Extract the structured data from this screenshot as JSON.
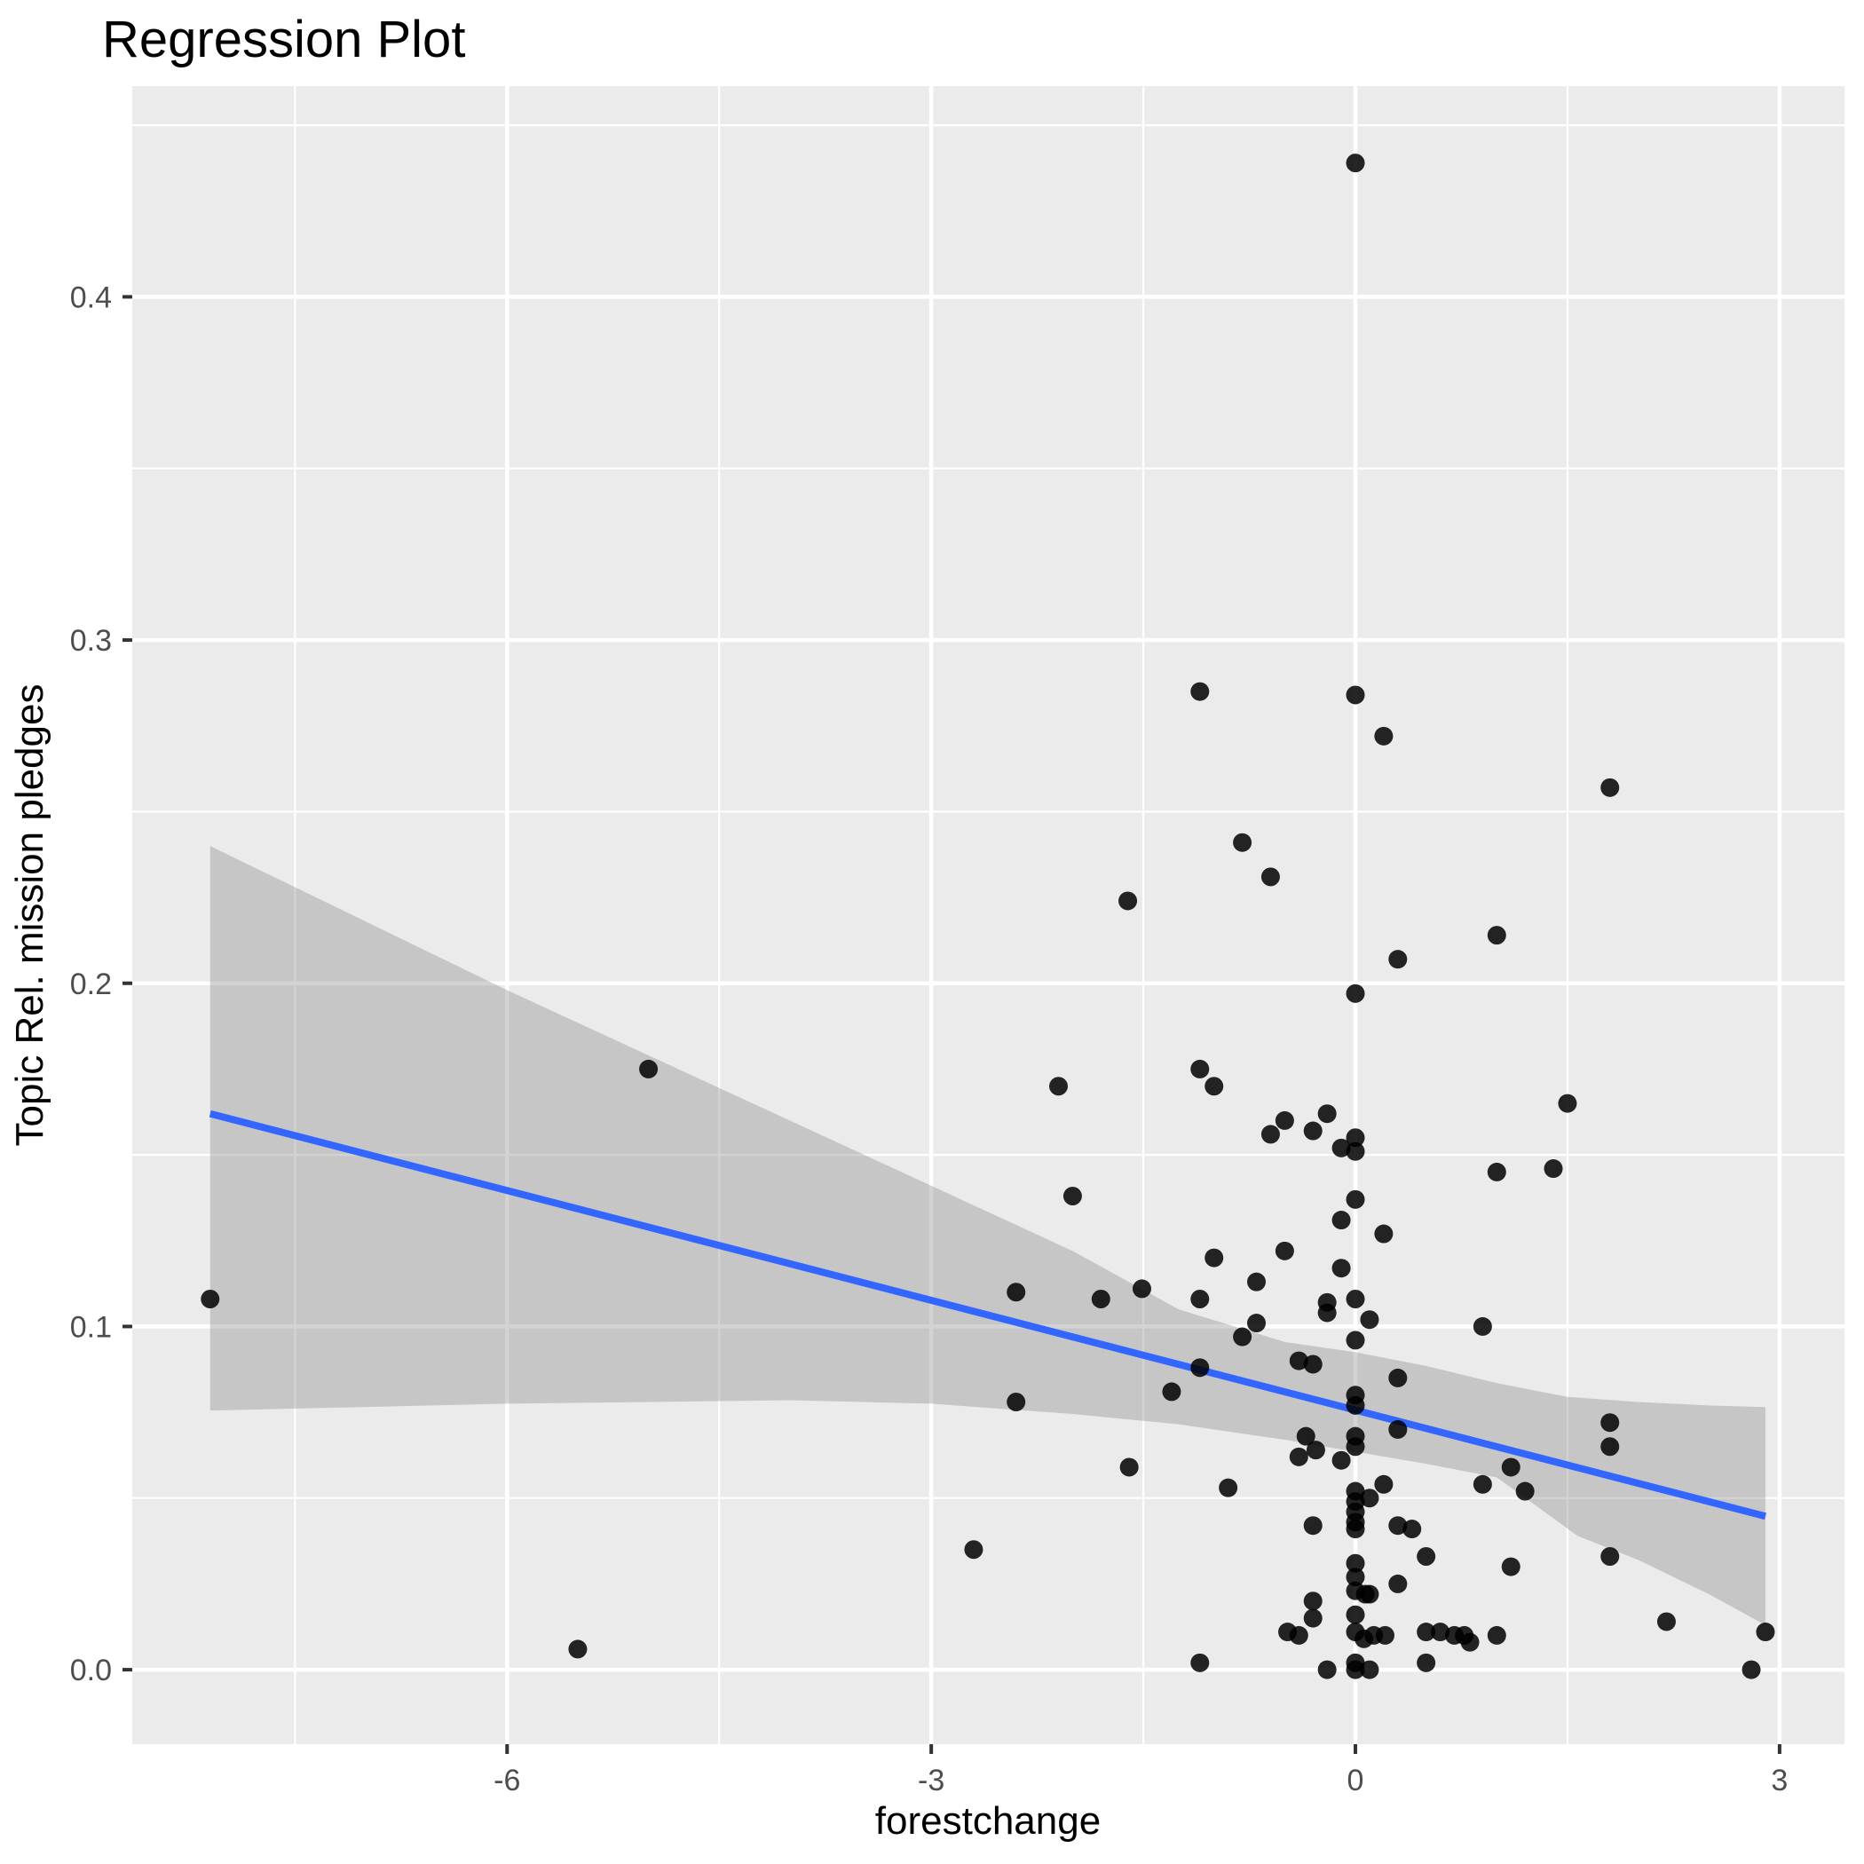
{
  "chart_data": {
    "type": "scatter",
    "title": "Regression Plot",
    "xlabel": "forestchange",
    "ylabel": "Topic Rel. mission pledges",
    "grid": true,
    "legend_position": "none",
    "panel_background": "#EBEBEB",
    "gridline_color": "#FFFFFF",
    "point_color": "#000000",
    "point_opacity": 0.85,
    "line_color": "#3366FF",
    "band_color": "rgba(140,140,140,0.38)",
    "tick_color": "#333333",
    "tick_label_color": "#4D4D4D",
    "x_domain": [
      -8.651,
      3.459
    ],
    "y_domain": [
      -0.0217,
      0.4614
    ],
    "x_major_ticks": [
      -6,
      -3,
      0,
      3
    ],
    "x_tick_labels": [
      "-6",
      "-3",
      "0",
      "3"
    ],
    "x_minor_ticks": [
      -7.5,
      -4.5,
      -1.5,
      1.5
    ],
    "y_major_ticks": [
      0.0,
      0.1,
      0.2,
      0.3,
      0.4
    ],
    "y_tick_labels": [
      "0.0",
      "0.1",
      "0.2",
      "0.3",
      "0.4"
    ],
    "y_minor_ticks": [
      0.05,
      0.15,
      0.25,
      0.35,
      0.45
    ],
    "regression_line": {
      "x1": -8.1,
      "y1": 0.162,
      "x2": 2.9,
      "y2": 0.0447
    },
    "confidence_band": {
      "upper": [
        [
          -8.1,
          0.24
        ],
        [
          -6.0,
          0.198
        ],
        [
          -5.0,
          0.179
        ],
        [
          -4.0,
          0.16
        ],
        [
          -3.0,
          0.141
        ],
        [
          -2.0,
          0.122
        ],
        [
          -1.25,
          0.105
        ],
        [
          -0.5,
          0.0955
        ],
        [
          0.0,
          0.0925
        ],
        [
          0.5,
          0.0885
        ],
        [
          1.0,
          0.0835
        ],
        [
          1.5,
          0.0795
        ],
        [
          2.0,
          0.078
        ],
        [
          2.5,
          0.077
        ],
        [
          2.9,
          0.0765
        ]
      ],
      "lower": [
        [
          -8.1,
          0.0755
        ],
        [
          -6.0,
          0.0775
        ],
        [
          -5.0,
          0.078
        ],
        [
          -4.0,
          0.0785
        ],
        [
          -3.0,
          0.0775
        ],
        [
          -2.0,
          0.0745
        ],
        [
          -1.25,
          0.0715
        ],
        [
          -0.5,
          0.067
        ],
        [
          0.0,
          0.0635
        ],
        [
          0.5,
          0.06
        ],
        [
          1.0,
          0.056
        ],
        [
          1.27,
          0.048
        ],
        [
          1.57,
          0.039
        ],
        [
          2.0,
          0.032
        ],
        [
          2.5,
          0.022
        ],
        [
          2.9,
          0.013
        ]
      ]
    },
    "points": [
      [
        -8.1,
        0.108
      ],
      [
        -5.5,
        0.006
      ],
      [
        -5.0,
        0.175
      ],
      [
        -2.7,
        0.035
      ],
      [
        -2.4,
        0.11
      ],
      [
        -2.4,
        0.078
      ],
      [
        -2.1,
        0.17
      ],
      [
        -2.0,
        0.138
      ],
      [
        -1.8,
        0.108
      ],
      [
        -1.61,
        0.224
      ],
      [
        -1.6,
        0.059
      ],
      [
        -1.51,
        0.111
      ],
      [
        -1.3,
        0.081
      ],
      [
        -1.1,
        0.285
      ],
      [
        -1.1,
        0.175
      ],
      [
        -1.0,
        0.17
      ],
      [
        -1.1,
        0.108
      ],
      [
        -1.1,
        0.088
      ],
      [
        -1.1,
        0.002
      ],
      [
        -1.0,
        0.12
      ],
      [
        -0.9,
        0.053
      ],
      [
        -0.8,
        0.241
      ],
      [
        -0.8,
        0.097
      ],
      [
        -0.7,
        0.113
      ],
      [
        -0.7,
        0.101
      ],
      [
        -0.6,
        0.231
      ],
      [
        -0.6,
        0.156
      ],
      [
        -0.5,
        0.16
      ],
      [
        -0.5,
        0.122
      ],
      [
        -0.48,
        0.011
      ],
      [
        -0.4,
        0.09
      ],
      [
        -0.4,
        0.062
      ],
      [
        -0.4,
        0.01
      ],
      [
        -0.35,
        0.068
      ],
      [
        -0.3,
        0.157
      ],
      [
        -0.3,
        0.089
      ],
      [
        -0.28,
        0.064
      ],
      [
        -0.3,
        0.042
      ],
      [
        -0.3,
        0.02
      ],
      [
        -0.3,
        0.015
      ],
      [
        -0.2,
        0.162
      ],
      [
        -0.2,
        0.107
      ],
      [
        -0.2,
        0.104
      ],
      [
        -0.2,
        0.0
      ],
      [
        -0.1,
        0.152
      ],
      [
        -0.1,
        0.131
      ],
      [
        -0.1,
        0.117
      ],
      [
        -0.1,
        0.061
      ],
      [
        0.0,
        0.439
      ],
      [
        0.0,
        0.284
      ],
      [
        0.0,
        0.197
      ],
      [
        0.0,
        0.155
      ],
      [
        0.0,
        0.151
      ],
      [
        0.0,
        0.137
      ],
      [
        0.0,
        0.108
      ],
      [
        0.0,
        0.096
      ],
      [
        0.0,
        0.08
      ],
      [
        0.0,
        0.077
      ],
      [
        0.0,
        0.068
      ],
      [
        0.0,
        0.065
      ],
      [
        0.0,
        0.052
      ],
      [
        0.0,
        0.049
      ],
      [
        0.0,
        0.046
      ],
      [
        0.0,
        0.043
      ],
      [
        0.0,
        0.041
      ],
      [
        0.0,
        0.031
      ],
      [
        0.0,
        0.027
      ],
      [
        0.0,
        0.023
      ],
      [
        0.07,
        0.022
      ],
      [
        0.0,
        0.016
      ],
      [
        0.0,
        0.011
      ],
      [
        0.0,
        0.002
      ],
      [
        0.0,
        0.0
      ],
      [
        0.06,
        0.009
      ],
      [
        0.1,
        0.102
      ],
      [
        0.1,
        0.05
      ],
      [
        0.1,
        0.022
      ],
      [
        0.1,
        0.0
      ],
      [
        0.13,
        0.01
      ],
      [
        0.2,
        0.272
      ],
      [
        0.3,
        0.207
      ],
      [
        0.2,
        0.127
      ],
      [
        0.2,
        0.054
      ],
      [
        0.21,
        0.01
      ],
      [
        0.3,
        0.085
      ],
      [
        0.3,
        0.07
      ],
      [
        0.3,
        0.042
      ],
      [
        0.3,
        0.025
      ],
      [
        0.4,
        0.041
      ],
      [
        0.5,
        0.033
      ],
      [
        0.5,
        0.011
      ],
      [
        0.5,
        0.002
      ],
      [
        0.6,
        0.011
      ],
      [
        0.7,
        0.01
      ],
      [
        0.77,
        0.01
      ],
      [
        0.81,
        0.008
      ],
      [
        0.9,
        0.1
      ],
      [
        0.9,
        0.054
      ],
      [
        1.0,
        0.214
      ],
      [
        1.0,
        0.145
      ],
      [
        1.0,
        0.01
      ],
      [
        1.1,
        0.059
      ],
      [
        1.1,
        0.03
      ],
      [
        1.2,
        0.052
      ],
      [
        1.4,
        0.146
      ],
      [
        1.5,
        0.165
      ],
      [
        1.8,
        0.257
      ],
      [
        1.8,
        0.072
      ],
      [
        1.8,
        0.065
      ],
      [
        1.8,
        0.033
      ],
      [
        2.2,
        0.014
      ],
      [
        2.8,
        0.0
      ],
      [
        2.9,
        0.011
      ]
    ]
  }
}
